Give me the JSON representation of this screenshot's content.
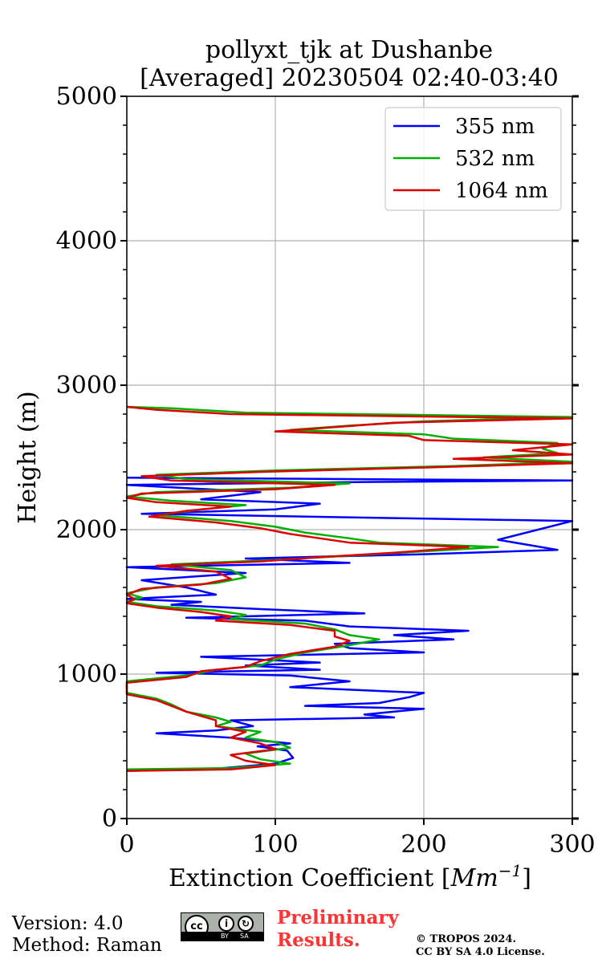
{
  "chart_data": {
    "type": "line",
    "title": [
      "pollyxt_tjk at Dushanbe",
      "[Averaged] 20230504 02:40-03:40"
    ],
    "xlabel": "Extinction Coefficient [",
    "xlabel_unit": "Mm",
    "xlabel_exp": "−1",
    "xlabel_end": "]",
    "ylabel": "Height (m)",
    "xlim": [
      0,
      300
    ],
    "ylim": [
      0,
      5000
    ],
    "xticks": [
      0,
      100,
      200,
      300
    ],
    "yticks": [
      0,
      1000,
      2000,
      3000,
      4000,
      5000
    ],
    "grid": true,
    "legend_position": "top-right",
    "series": [
      {
        "name": "355 nm",
        "color": "#0000ff",
        "points": [
          [
            0,
            330
          ],
          [
            60,
            345
          ],
          [
            100,
            380
          ],
          [
            112,
            420
          ],
          [
            108,
            470
          ],
          [
            88,
            500
          ],
          [
            110,
            520
          ],
          [
            70,
            560
          ],
          [
            20,
            590
          ],
          [
            60,
            610
          ],
          [
            85,
            640
          ],
          [
            70,
            680
          ],
          [
            180,
            700
          ],
          [
            160,
            720
          ],
          [
            200,
            760
          ],
          [
            120,
            780
          ],
          [
            170,
            800
          ],
          [
            190,
            840
          ],
          [
            200,
            870
          ],
          [
            110,
            910
          ],
          [
            150,
            950
          ],
          [
            110,
            990
          ],
          [
            20,
            1010
          ],
          [
            130,
            1030
          ],
          [
            80,
            1060
          ],
          [
            130,
            1080
          ],
          [
            50,
            1120
          ],
          [
            200,
            1150
          ],
          [
            150,
            1180
          ],
          [
            140,
            1210
          ],
          [
            220,
            1240
          ],
          [
            180,
            1270
          ],
          [
            230,
            1300
          ],
          [
            150,
            1330
          ],
          [
            120,
            1370
          ],
          [
            40,
            1390
          ],
          [
            160,
            1420
          ],
          [
            90,
            1450
          ],
          [
            30,
            1480
          ],
          [
            50,
            1500
          ],
          [
            0,
            1520
          ],
          [
            60,
            1550
          ],
          [
            40,
            1600
          ],
          [
            10,
            1650
          ],
          [
            80,
            1700
          ],
          [
            0,
            1740
          ],
          [
            150,
            1770
          ],
          [
            80,
            1800
          ],
          [
            200,
            1830
          ],
          [
            290,
            1860
          ],
          [
            250,
            1930
          ],
          [
            300,
            2060
          ],
          [
            180,
            2080
          ],
          [
            10,
            2110
          ],
          [
            100,
            2140
          ],
          [
            130,
            2180
          ],
          [
            50,
            2210
          ],
          [
            90,
            2260
          ],
          [
            0,
            2310
          ],
          [
            160,
            2330
          ],
          [
            300,
            2340
          ],
          [
            0,
            2360
          ]
        ]
      },
      {
        "name": "532 nm",
        "color": "#00b000",
        "points": [
          [
            0,
            340
          ],
          [
            70,
            350
          ],
          [
            110,
            380
          ],
          [
            90,
            410
          ],
          [
            80,
            450
          ],
          [
            110,
            490
          ],
          [
            100,
            530
          ],
          [
            80,
            560
          ],
          [
            90,
            600
          ],
          [
            60,
            640
          ],
          [
            70,
            670
          ],
          [
            60,
            700
          ],
          [
            40,
            740
          ],
          [
            30,
            790
          ],
          [
            20,
            830
          ],
          [
            0,
            870
          ],
          [
            0,
            910
          ],
          [
            0,
            950
          ],
          [
            40,
            990
          ],
          [
            60,
            1030
          ],
          [
            90,
            1060
          ],
          [
            100,
            1100
          ],
          [
            120,
            1150
          ],
          [
            150,
            1200
          ],
          [
            170,
            1240
          ],
          [
            150,
            1270
          ],
          [
            140,
            1310
          ],
          [
            120,
            1350
          ],
          [
            70,
            1380
          ],
          [
            80,
            1410
          ],
          [
            60,
            1440
          ],
          [
            20,
            1470
          ],
          [
            0,
            1500
          ],
          [
            10,
            1530
          ],
          [
            0,
            1560
          ],
          [
            20,
            1600
          ],
          [
            60,
            1630
          ],
          [
            80,
            1670
          ],
          [
            70,
            1720
          ],
          [
            30,
            1760
          ],
          [
            100,
            1790
          ],
          [
            150,
            1820
          ],
          [
            200,
            1850
          ],
          [
            250,
            1880
          ],
          [
            170,
            1910
          ],
          [
            150,
            1940
          ],
          [
            120,
            1980
          ],
          [
            100,
            2020
          ],
          [
            70,
            2060
          ],
          [
            20,
            2100
          ],
          [
            50,
            2140
          ],
          [
            80,
            2170
          ],
          [
            30,
            2200
          ],
          [
            0,
            2230
          ],
          [
            20,
            2260
          ],
          [
            110,
            2290
          ],
          [
            150,
            2320
          ],
          [
            40,
            2350
          ],
          [
            20,
            2380
          ],
          [
            100,
            2410
          ],
          [
            220,
            2440
          ],
          [
            300,
            2470
          ],
          [
            240,
            2500
          ],
          [
            290,
            2530
          ],
          [
            280,
            2560
          ],
          [
            290,
            2600
          ],
          [
            220,
            2630
          ],
          [
            200,
            2660
          ],
          [
            110,
            2690
          ],
          [
            150,
            2720
          ],
          [
            200,
            2750
          ],
          [
            300,
            2780
          ],
          [
            80,
            2810
          ],
          [
            30,
            2840
          ],
          [
            0,
            2850
          ]
        ]
      },
      {
        "name": "1064 nm",
        "color": "#dd0000",
        "points": [
          [
            0,
            330
          ],
          [
            70,
            340
          ],
          [
            100,
            370
          ],
          [
            80,
            400
          ],
          [
            70,
            440
          ],
          [
            100,
            480
          ],
          [
            90,
            520
          ],
          [
            70,
            560
          ],
          [
            80,
            600
          ],
          [
            60,
            640
          ],
          [
            60,
            680
          ],
          [
            50,
            710
          ],
          [
            40,
            740
          ],
          [
            30,
            780
          ],
          [
            20,
            820
          ],
          [
            0,
            860
          ],
          [
            0,
            900
          ],
          [
            0,
            940
          ],
          [
            40,
            980
          ],
          [
            50,
            1020
          ],
          [
            80,
            1050
          ],
          [
            90,
            1090
          ],
          [
            110,
            1140
          ],
          [
            140,
            1190
          ],
          [
            150,
            1230
          ],
          [
            140,
            1260
          ],
          [
            140,
            1300
          ],
          [
            110,
            1340
          ],
          [
            60,
            1370
          ],
          [
            70,
            1400
          ],
          [
            50,
            1430
          ],
          [
            20,
            1460
          ],
          [
            0,
            1490
          ],
          [
            5,
            1520
          ],
          [
            0,
            1550
          ],
          [
            10,
            1590
          ],
          [
            50,
            1620
          ],
          [
            70,
            1660
          ],
          [
            60,
            1710
          ],
          [
            20,
            1750
          ],
          [
            90,
            1780
          ],
          [
            130,
            1810
          ],
          [
            180,
            1840
          ],
          [
            230,
            1880
          ],
          [
            150,
            1910
          ],
          [
            130,
            1940
          ],
          [
            110,
            1970
          ],
          [
            90,
            2010
          ],
          [
            60,
            2050
          ],
          [
            15,
            2090
          ],
          [
            40,
            2130
          ],
          [
            70,
            2160
          ],
          [
            20,
            2190
          ],
          [
            0,
            2220
          ],
          [
            10,
            2250
          ],
          [
            100,
            2280
          ],
          [
            140,
            2310
          ],
          [
            30,
            2340
          ],
          [
            10,
            2370
          ],
          [
            90,
            2400
          ],
          [
            200,
            2430
          ],
          [
            300,
            2460
          ],
          [
            220,
            2490
          ],
          [
            300,
            2520
          ],
          [
            260,
            2550
          ],
          [
            300,
            2590
          ],
          [
            200,
            2620
          ],
          [
            190,
            2650
          ],
          [
            100,
            2680
          ],
          [
            140,
            2710
          ],
          [
            180,
            2740
          ],
          [
            300,
            2770
          ],
          [
            70,
            2800
          ],
          [
            20,
            2830
          ],
          [
            0,
            2850
          ]
        ]
      }
    ]
  },
  "footer": {
    "version": "Version: 4.0",
    "method": "Method: Raman",
    "prelim_line1": "Preliminary",
    "prelim_line2": "Results.",
    "copyright_line1": "© TROPOS 2024.",
    "copyright_line2": "CC BY SA 4.0 License."
  },
  "license_badge": {
    "cc": "cc",
    "by": "BY",
    "sa": "SA"
  }
}
